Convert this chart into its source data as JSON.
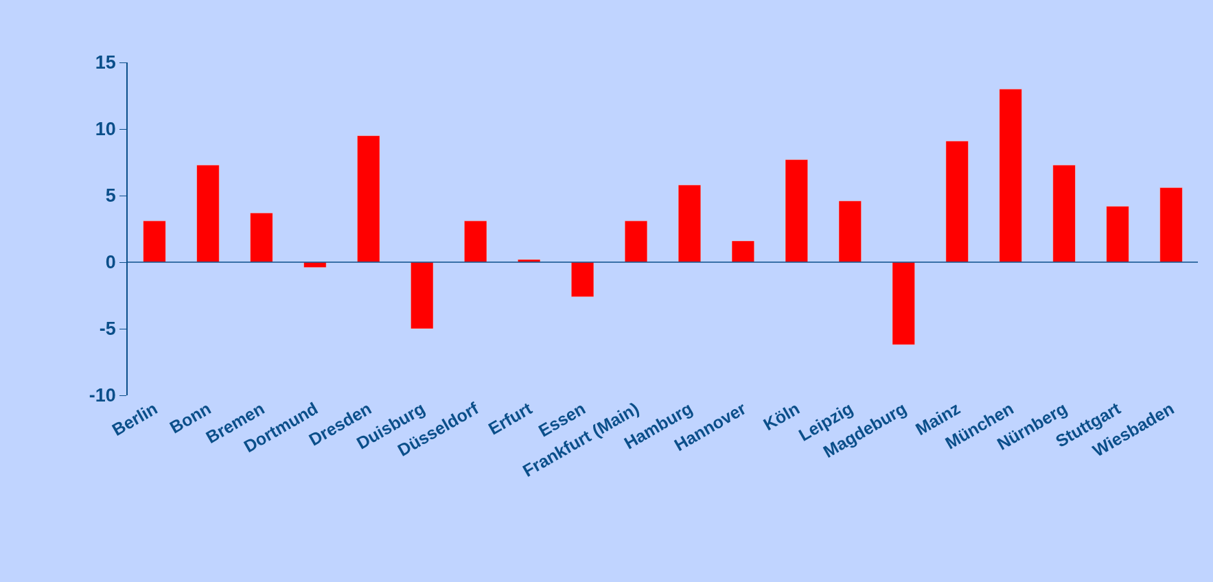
{
  "chart_data": {
    "type": "bar",
    "categories": [
      "Berlin",
      "Bonn",
      "Bremen",
      "Dortmund",
      "Dresden",
      "Duisburg",
      "Düsseldorf",
      "Erfurt",
      "Essen",
      "Frankfurt (Main)",
      "Hamburg",
      "Hannover",
      "Köln",
      "Leipzig",
      "Magdeburg",
      "Mainz",
      "München",
      "Nürnberg",
      "Stuttgart",
      "Wiesbaden"
    ],
    "values": [
      3.1,
      7.3,
      3.7,
      -0.4,
      9.5,
      -5.0,
      3.1,
      0.2,
      -2.6,
      3.1,
      5.8,
      1.6,
      7.7,
      4.6,
      -6.2,
      9.1,
      13.0,
      7.3,
      4.2,
      5.6
    ],
    "color": "#ff0000",
    "ylim": [
      -10,
      15
    ],
    "yticks": [
      -10,
      -5,
      0,
      5,
      10,
      15
    ],
    "grid": false,
    "ref_lines": [
      {
        "axis": "y",
        "value": 0,
        "color": "#0b4f8a"
      }
    ]
  }
}
